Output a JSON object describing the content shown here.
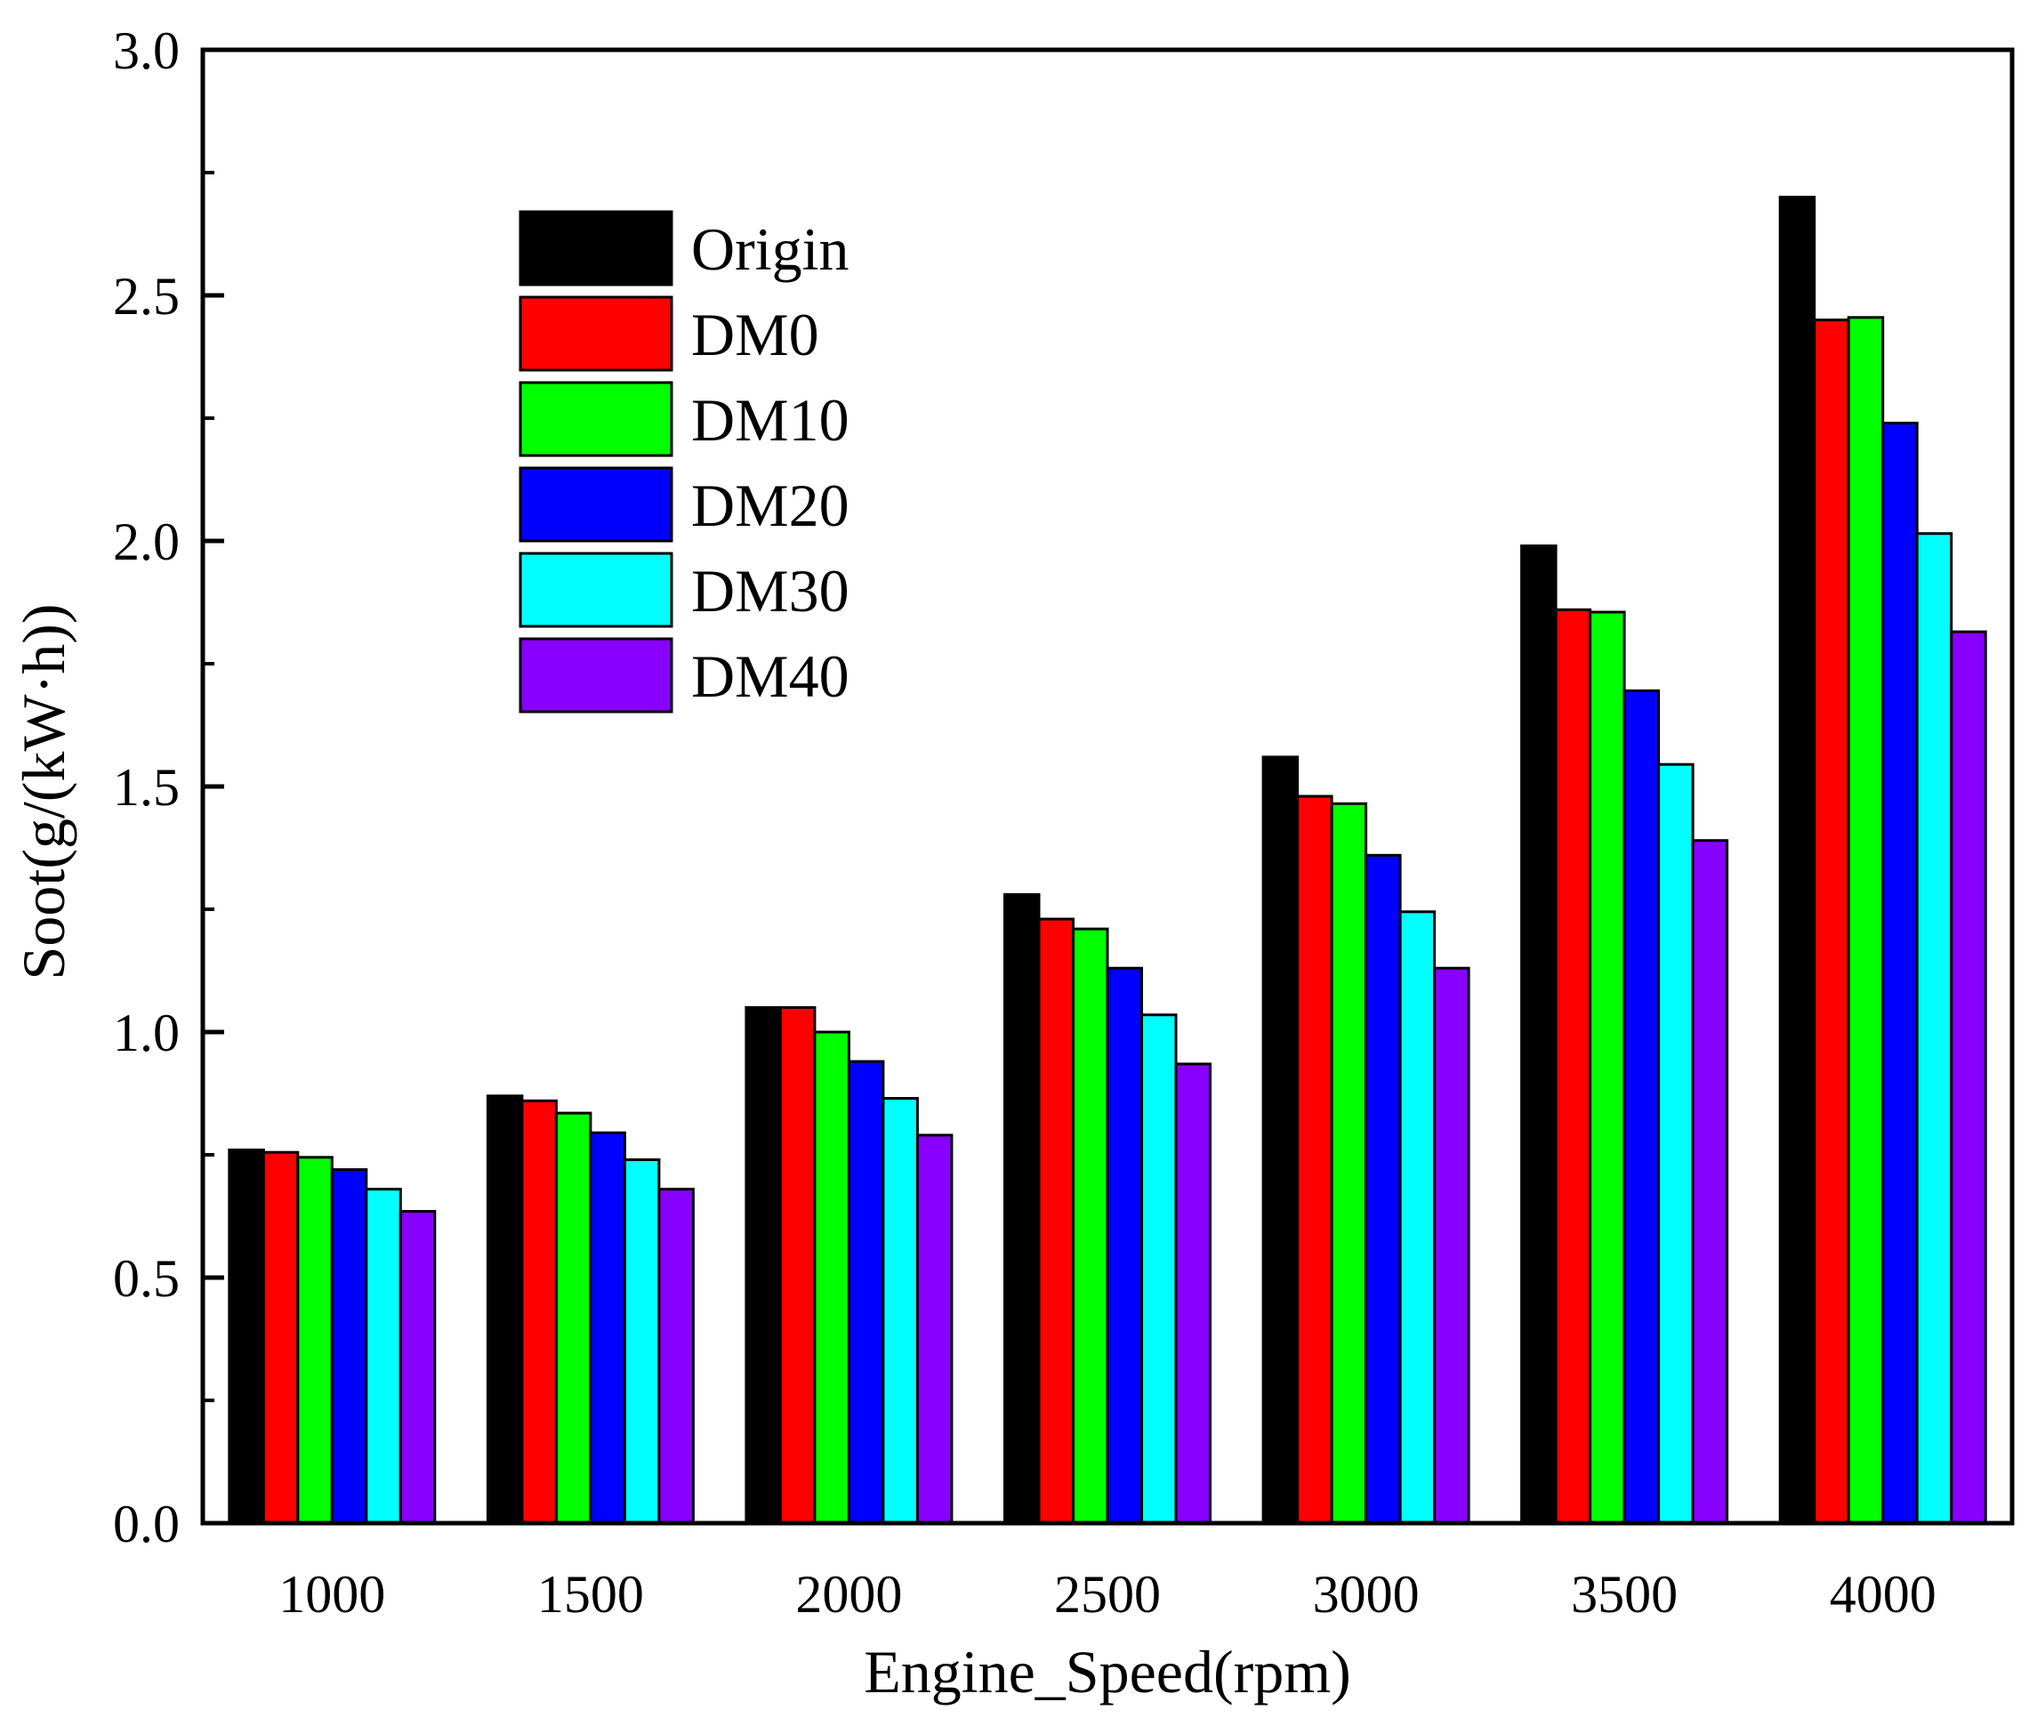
{
  "chart_data": {
    "type": "bar",
    "title": "",
    "xlabel": "Engine_Speed(rpm)",
    "ylabel": "Soot(g/(kW·h))",
    "ylim": [
      0,
      3.0
    ],
    "yticks": [
      "0.0",
      "0.5",
      "1.0",
      "1.5",
      "2.0",
      "2.5",
      "3.0"
    ],
    "y_minor_step": 0.25,
    "grid": false,
    "legend_position": "top-left",
    "categories": [
      "1000",
      "1500",
      "2000",
      "2500",
      "3000",
      "3500",
      "4000"
    ],
    "series": [
      {
        "name": "Origin",
        "color": "#000000",
        "values": [
          0.76,
          0.87,
          1.05,
          1.28,
          1.56,
          1.99,
          2.7
        ]
      },
      {
        "name": "DM0",
        "color": "#ff0000",
        "values": [
          0.755,
          0.86,
          1.05,
          1.23,
          1.48,
          1.86,
          2.45
        ]
      },
      {
        "name": "DM10",
        "color": "#00ff00",
        "values": [
          0.745,
          0.835,
          1.0,
          1.21,
          1.465,
          1.855,
          2.455
        ]
      },
      {
        "name": "DM20",
        "color": "#0000ff",
        "values": [
          0.72,
          0.795,
          0.94,
          1.13,
          1.36,
          1.695,
          2.24
        ]
      },
      {
        "name": "DM30",
        "color": "#00ffff",
        "values": [
          0.68,
          0.74,
          0.865,
          1.035,
          1.245,
          1.545,
          2.015
        ]
      },
      {
        "name": "DM40",
        "color": "#8800ff",
        "values": [
          0.635,
          0.68,
          0.79,
          0.935,
          1.13,
          1.39,
          1.815
        ]
      }
    ]
  }
}
